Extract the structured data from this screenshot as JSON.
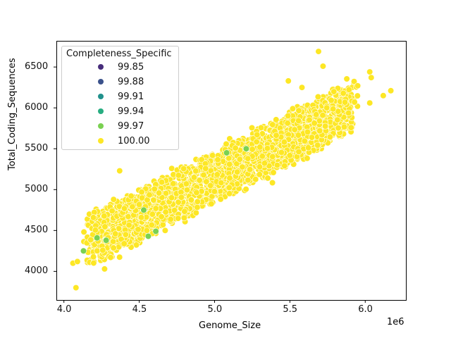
{
  "chart_data": {
    "type": "scatter",
    "title": "",
    "xlabel": "Genome_Size",
    "ylabel": "Total_Coding_Sequences",
    "x_offset_label": "1e6",
    "xlim": [
      3.95,
      6.27
    ],
    "ylim": [
      3650,
      6820
    ],
    "x_ticks": [
      4.0,
      4.5,
      5.0,
      5.5,
      6.0
    ],
    "x_tick_labels": [
      "4.0",
      "4.5",
      "5.0",
      "5.5",
      "6.0"
    ],
    "y_ticks": [
      4000,
      4500,
      5000,
      5500,
      6000,
      6500
    ],
    "y_tick_labels": [
      "4000",
      "4500",
      "5000",
      "5500",
      "6000",
      "6500"
    ],
    "grid": false,
    "legend": {
      "title": "Completeness_Specific",
      "position": "upper left",
      "entries": [
        {
          "label": "99.85",
          "color": "#472d7b"
        },
        {
          "label": "99.88",
          "color": "#3b528b"
        },
        {
          "label": "99.91",
          "color": "#21918c"
        },
        {
          "label": "99.94",
          "color": "#27ad81"
        },
        {
          "label": "99.97",
          "color": "#7ad151"
        },
        {
          "label": "100.00",
          "color": "#fde725"
        }
      ]
    },
    "hue": "Completeness_Specific",
    "dense_band": {
      "description": "Dense cloud of ~thousands of points, hue 100.00, roughly linear trend",
      "x_range": [
        4.15,
        5.95
      ],
      "y_at_x_start": 4350,
      "y_at_x_end": 6050,
      "band_half_width": 330,
      "color": "#fde725",
      "n_points": 2600
    },
    "points": [
      {
        "x": 5.69,
        "y": 6690,
        "hue": "100.00"
      },
      {
        "x": 5.72,
        "y": 6510,
        "hue": "100.00"
      },
      {
        "x": 5.49,
        "y": 6330,
        "hue": "100.00"
      },
      {
        "x": 5.58,
        "y": 6250,
        "hue": "100.00"
      },
      {
        "x": 6.03,
        "y": 6440,
        "hue": "100.00"
      },
      {
        "x": 6.04,
        "y": 6370,
        "hue": "100.00"
      },
      {
        "x": 6.17,
        "y": 6210,
        "hue": "100.00"
      },
      {
        "x": 6.12,
        "y": 6150,
        "hue": "100.00"
      },
      {
        "x": 6.03,
        "y": 6060,
        "hue": "100.00"
      },
      {
        "x": 5.95,
        "y": 6270,
        "hue": "100.00"
      },
      {
        "x": 4.37,
        "y": 5230,
        "hue": "100.00"
      },
      {
        "x": 4.08,
        "y": 3800,
        "hue": "100.00"
      },
      {
        "x": 4.27,
        "y": 4030,
        "hue": "100.00"
      },
      {
        "x": 4.06,
        "y": 4100,
        "hue": "100.00"
      },
      {
        "x": 4.09,
        "y": 4120,
        "hue": "100.00"
      },
      {
        "x": 4.33,
        "y": 4880,
        "hue": "100.00"
      },
      {
        "x": 4.32,
        "y": 4740,
        "hue": "100.00"
      },
      {
        "x": 4.31,
        "y": 4170,
        "hue": "100.00"
      },
      {
        "x": 4.13,
        "y": 4250,
        "hue": "99.97"
      },
      {
        "x": 4.22,
        "y": 4410,
        "hue": "99.97"
      },
      {
        "x": 4.56,
        "y": 4430,
        "hue": "99.97"
      },
      {
        "x": 4.61,
        "y": 4490,
        "hue": "99.97"
      },
      {
        "x": 5.08,
        "y": 5450,
        "hue": "99.97"
      },
      {
        "x": 4.28,
        "y": 4380,
        "hue": "99.97"
      },
      {
        "x": 4.53,
        "y": 4750,
        "hue": "99.97"
      },
      {
        "x": 5.21,
        "y": 5500,
        "hue": "99.97"
      }
    ]
  }
}
